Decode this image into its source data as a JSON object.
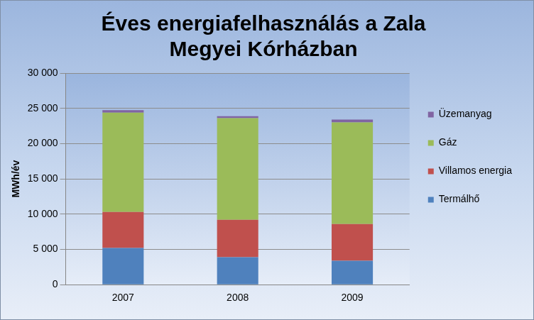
{
  "chart_data": {
    "type": "bar",
    "title": [
      "Éves energiafelhasználás a Zala",
      "Megyei Kórházban"
    ],
    "y_label": "MWh/év",
    "categories": [
      "2007",
      "2008",
      "2009"
    ],
    "series": [
      {
        "name": "Termálhő",
        "color": "#4f81bd",
        "values": [
          5200,
          3900,
          3400
        ]
      },
      {
        "name": "Villamos energia",
        "color": "#c0504d",
        "values": [
          5100,
          5300,
          5200
        ]
      },
      {
        "name": "Gáz",
        "color": "#9bbb59",
        "values": [
          14100,
          14400,
          14400
        ]
      },
      {
        "name": "Üzemanyag",
        "color": "#8064a2",
        "values": [
          350,
          300,
          400
        ]
      }
    ],
    "ylim": [
      0,
      30000
    ],
    "yticks": [
      0,
      {
        "value": 5000,
        "label": "5 000"
      },
      {
        "value": 10000,
        "label": "10 000"
      },
      {
        "value": 15000,
        "label": "15 000"
      },
      {
        "value": 20000,
        "label": "20 000"
      },
      {
        "value": 25000,
        "label": "25 000"
      },
      {
        "value": 30000,
        "label": "30 000"
      }
    ],
    "stacked": true,
    "grid": true,
    "legend": "right"
  }
}
